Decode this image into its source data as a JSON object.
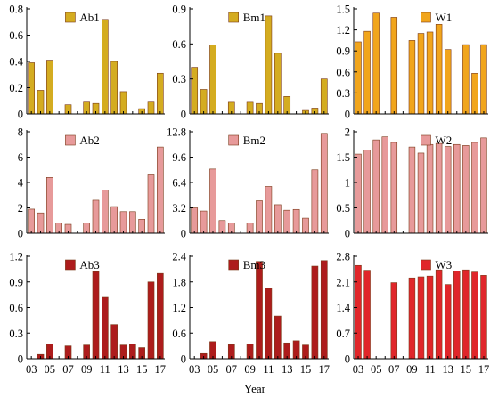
{
  "xlabel": "Year",
  "xtick_labels": [
    "03",
    "05",
    "07",
    "09",
    "11",
    "13",
    "15",
    "17"
  ],
  "colors": {
    "row1": "#d4ac20",
    "row2": "#e79a9a",
    "row3": "#ad1c1c",
    "w1": "#f1a51c",
    "w3": "#e0262a",
    "outline": "#7a3a1a"
  },
  "chart_data": [
    {
      "type": "bar",
      "name": "Ab1",
      "legend": "Ab1",
      "years": [
        2003,
        2004,
        2005,
        2006,
        2007,
        2008,
        2009,
        2010,
        2011,
        2012,
        2013,
        2014,
        2015,
        2016,
        2017
      ],
      "values": [
        0.39,
        0.18,
        0.41,
        null,
        0.07,
        null,
        0.09,
        0.08,
        0.72,
        0.4,
        0.17,
        null,
        0.04,
        0.09,
        0.31
      ],
      "ylim": [
        0,
        0.8
      ],
      "yticks": [
        "0",
        "0.2",
        "0.4",
        "0.6",
        "0.8"
      ]
    },
    {
      "type": "bar",
      "name": "Bm1",
      "legend": "Bm1",
      "years": [
        2003,
        2004,
        2005,
        2006,
        2007,
        2008,
        2009,
        2010,
        2011,
        2012,
        2013,
        2014,
        2015,
        2016,
        2017
      ],
      "values": [
        0.4,
        0.21,
        0.59,
        null,
        0.1,
        null,
        0.1,
        0.09,
        0.84,
        0.52,
        0.15,
        null,
        0.03,
        0.05,
        0.3
      ],
      "ylim": [
        0,
        0.9
      ],
      "yticks": [
        "0",
        "0.3",
        "0.6",
        "0.9"
      ]
    },
    {
      "type": "bar",
      "name": "W1",
      "legend": "W1",
      "years": [
        2003,
        2004,
        2005,
        2006,
        2007,
        2008,
        2009,
        2010,
        2011,
        2012,
        2013,
        2014,
        2015,
        2016,
        2017
      ],
      "values": [
        1.03,
        1.18,
        1.44,
        null,
        1.38,
        null,
        1.05,
        1.15,
        1.17,
        1.28,
        0.92,
        null,
        0.99,
        0.58,
        0.99
      ],
      "ylim": [
        0,
        1.5
      ],
      "yticks": [
        "0",
        "0.3",
        "0.6",
        "0.9",
        "1.2",
        "1.5"
      ]
    },
    {
      "type": "bar",
      "name": "Ab2",
      "legend": "Ab2",
      "years": [
        2003,
        2004,
        2005,
        2006,
        2007,
        2008,
        2009,
        2010,
        2011,
        2012,
        2013,
        2014,
        2015,
        2016,
        2017
      ],
      "values": [
        1.9,
        1.6,
        4.4,
        0.8,
        0.7,
        null,
        0.8,
        2.6,
        3.4,
        2.1,
        1.7,
        1.7,
        1.1,
        4.6,
        6.8
      ],
      "ylim": [
        0,
        8
      ],
      "yticks": [
        "0",
        "2",
        "4",
        "6",
        "8"
      ]
    },
    {
      "type": "bar",
      "name": "Bm2",
      "legend": "Bm2",
      "years": [
        2003,
        2004,
        2005,
        2006,
        2007,
        2008,
        2009,
        2010,
        2011,
        2012,
        2013,
        2014,
        2015,
        2016,
        2017
      ],
      "values": [
        3.2,
        2.8,
        8.1,
        1.6,
        1.3,
        null,
        1.3,
        4.1,
        5.9,
        3.6,
        2.9,
        3.0,
        1.9,
        8.0,
        12.6
      ],
      "ylim": [
        0,
        12.8
      ],
      "yticks": [
        "0",
        "3.2",
        "6.4",
        "9.6",
        "12.8"
      ]
    },
    {
      "type": "bar",
      "name": "W2",
      "legend": "W2",
      "years": [
        2003,
        2004,
        2005,
        2006,
        2007,
        2008,
        2009,
        2010,
        2011,
        2012,
        2013,
        2014,
        2015,
        2016,
        2017
      ],
      "values": [
        1.56,
        1.64,
        1.84,
        1.9,
        1.79,
        null,
        1.7,
        1.58,
        1.75,
        1.77,
        1.71,
        1.75,
        1.73,
        1.79,
        1.88
      ],
      "ylim": [
        0,
        2
      ],
      "yticks": [
        "0",
        "0.5",
        "1",
        "1.5",
        "2"
      ]
    },
    {
      "type": "bar",
      "name": "Ab3",
      "legend": "Ab3",
      "years": [
        2003,
        2004,
        2005,
        2006,
        2007,
        2008,
        2009,
        2010,
        2011,
        2012,
        2013,
        2014,
        2015,
        2016,
        2017
      ],
      "values": [
        null,
        0.05,
        0.17,
        null,
        0.15,
        null,
        0.16,
        1.02,
        0.72,
        0.4,
        0.16,
        0.17,
        0.13,
        0.9,
        1.0
      ],
      "ylim": [
        0,
        1.2
      ],
      "yticks": [
        "0",
        "0.3",
        "0.6",
        "0.9",
        "1.2"
      ]
    },
    {
      "type": "bar",
      "name": "Bm3",
      "legend": "Bm3",
      "years": [
        2003,
        2004,
        2005,
        2006,
        2007,
        2008,
        2009,
        2010,
        2011,
        2012,
        2013,
        2014,
        2015,
        2016,
        2017
      ],
      "values": [
        null,
        0.12,
        0.4,
        null,
        0.33,
        null,
        0.34,
        2.28,
        1.65,
        1.0,
        0.37,
        0.42,
        0.32,
        2.17,
        2.3
      ],
      "ylim": [
        0,
        2.4
      ],
      "yticks": [
        "0",
        "0.6",
        "1.2",
        "1.8",
        "2.4"
      ]
    },
    {
      "type": "bar",
      "name": "W3",
      "legend": "W3",
      "years": [
        2003,
        2004,
        2005,
        2006,
        2007,
        2008,
        2009,
        2010,
        2011,
        2012,
        2013,
        2014,
        2015,
        2016,
        2017
      ],
      "values": [
        2.55,
        2.42,
        null,
        null,
        2.08,
        null,
        2.21,
        2.24,
        2.26,
        2.43,
        2.03,
        2.4,
        2.43,
        2.37,
        2.28
      ],
      "ylim": [
        0,
        2.8
      ],
      "yticks": [
        "0",
        "0.7",
        "1.4",
        "2.1",
        "2.8"
      ]
    }
  ]
}
